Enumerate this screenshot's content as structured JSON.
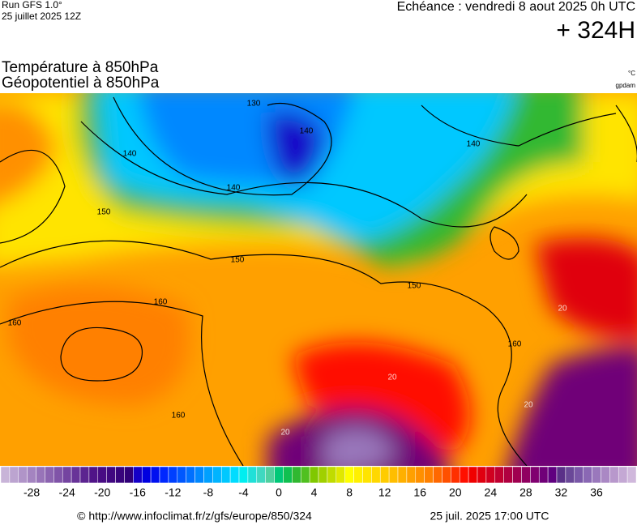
{
  "header": {
    "run": "Run GFS 1.0°",
    "run_date": "25 juillet 2025 12Z",
    "valid": "Echéance : vendredi 8 aout 2025 0h UTC",
    "lead": "+ 324H"
  },
  "map": {
    "title_temp": "Température à 850hPa",
    "title_geo": "Géopotentiel à 850hPa",
    "unit_temp": "°C",
    "unit_geo": "gpdam",
    "contour_labels": [
      "130",
      "140",
      "140",
      "140",
      "140",
      "150",
      "150",
      "150",
      "160",
      "160",
      "160",
      "160",
      "20",
      "20",
      "20",
      "20"
    ]
  },
  "colorbar": {
    "min": -31,
    "max": 40,
    "ticks": [
      -28,
      -24,
      -20,
      -16,
      -12,
      -8,
      -4,
      0,
      4,
      8,
      12,
      16,
      20,
      24,
      28,
      32,
      36
    ],
    "colors": [
      "#c8b4d8",
      "#bca4d0",
      "#b094c8",
      "#a484c0",
      "#9874b8",
      "#8c64b0",
      "#8054a8",
      "#7444a0",
      "#683498",
      "#5c2490",
      "#501488",
      "#480c84",
      "#400880",
      "#38047c",
      "#300078",
      "#1400c8",
      "#0000e0",
      "#0010f0",
      "#0028ff",
      "#0040ff",
      "#0058ff",
      "#0070ff",
      "#0088ff",
      "#00a0ff",
      "#00b4ff",
      "#00c8ff",
      "#00dcff",
      "#00eef0",
      "#20e0d8",
      "#40d8c0",
      "#50d0a0",
      "#00c878",
      "#10c050",
      "#30b830",
      "#50c020",
      "#80c800",
      "#a0d000",
      "#c0dc00",
      "#e0e800",
      "#ffff00",
      "#fff000",
      "#ffe400",
      "#ffd800",
      "#ffcc00",
      "#ffbe00",
      "#ffb000",
      "#ffa000",
      "#ff9000",
      "#ff8000",
      "#ff6800",
      "#ff5000",
      "#ff3000",
      "#ff1000",
      "#f00000",
      "#e00010",
      "#d00020",
      "#c00030",
      "#b00040",
      "#a00050",
      "#900060",
      "#800070",
      "#700078",
      "#600080",
      "#5a3088",
      "#6a4898",
      "#7a58a8",
      "#8a68b4",
      "#9a78bc",
      "#aa88c4",
      "#b898cc",
      "#c4a8d4",
      "#d0b8dc"
    ]
  },
  "footer": {
    "source": "© http://www.infoclimat.fr/z/gfs/europe/850/324",
    "generated": "25 juil. 2025 17:00 UTC"
  }
}
